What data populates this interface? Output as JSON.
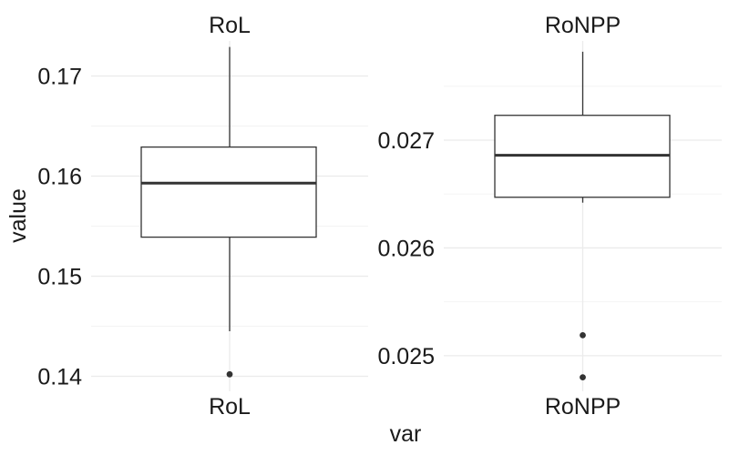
{
  "chart_data": {
    "type": "boxplot",
    "xlabel": "var",
    "ylabel": "value",
    "grid": true,
    "legend": "none",
    "facets": [
      {
        "strip_label": "RoL",
        "category": "RoL",
        "ylim": [
          0.1385,
          0.1735
        ],
        "yticks": [
          {
            "value": 0.14,
            "label": "0.14"
          },
          {
            "value": 0.15,
            "label": "0.15"
          },
          {
            "value": 0.16,
            "label": "0.16"
          },
          {
            "value": 0.17,
            "label": "0.17"
          }
        ],
        "whisker_low": 0.1445,
        "q1": 0.1539,
        "median": 0.1593,
        "q3": 0.1629,
        "whisker_high": 0.1729,
        "outliers": [
          0.1402
        ]
      },
      {
        "strip_label": "RoNPP",
        "category": "RoNPP",
        "ylim": [
          0.02467,
          0.02792
        ],
        "yticks": [
          {
            "value": 0.025,
            "label": "0.025"
          },
          {
            "value": 0.026,
            "label": "0.026"
          },
          {
            "value": 0.027,
            "label": "0.027"
          }
        ],
        "whisker_low": 0.02642,
        "q1": 0.02647,
        "median": 0.02686,
        "q3": 0.02723,
        "whisker_high": 0.02782,
        "outliers": [
          0.02519,
          0.0248
        ]
      }
    ]
  }
}
